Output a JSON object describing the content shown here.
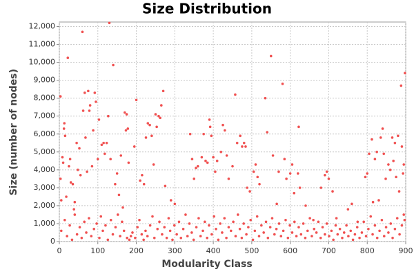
{
  "chart_data": {
    "type": "scatter",
    "title": "Size Distribution",
    "x_label": "Modularity Class",
    "y_label": "Size (number of nodes)",
    "color": "#f05050",
    "grid": true,
    "xlim": [
      0,
      900
    ],
    "ylim": [
      0,
      12250
    ],
    "xticks": [
      0,
      100,
      200,
      300,
      400,
      500,
      600,
      700,
      800,
      900
    ],
    "yticks": [
      0,
      {
        "value": 1000,
        "label": "1,000"
      },
      {
        "value": 2000,
        "label": "2,000"
      },
      {
        "value": 3000,
        "label": "3,000"
      },
      {
        "value": 4000,
        "label": "4,000"
      },
      {
        "value": 5000,
        "label": "5,000"
      },
      {
        "value": 6000,
        "label": "6,000"
      },
      {
        "value": 7000,
        "label": "7,000"
      },
      {
        "value": 8000,
        "label": "8,000"
      },
      {
        "value": 9000,
        "label": "9,000"
      },
      {
        "value": 10000,
        "label": "10,000"
      },
      {
        "value": 11000,
        "label": "11,000"
      },
      {
        "value": 12000,
        "label": "12,000"
      }
    ],
    "x": [
      3,
      3,
      5,
      8,
      10,
      12,
      13,
      15,
      18,
      22,
      25,
      28,
      30,
      35,
      38,
      40,
      45,
      48,
      52,
      55,
      60,
      62,
      66,
      68,
      72,
      75,
      78,
      80,
      85,
      88,
      92,
      95,
      100,
      103,
      110,
      115,
      118,
      123,
      127,
      130,
      133,
      140,
      145,
      150,
      155,
      160,
      165,
      170,
      173,
      175,
      178,
      180,
      195,
      200,
      210,
      215,
      220,
      225,
      230,
      235,
      240,
      245,
      250,
      253,
      258,
      262,
      265,
      270,
      275,
      290,
      300,
      340,
      345,
      350,
      355,
      360,
      370,
      375,
      380,
      385,
      390,
      392,
      395,
      400,
      405,
      410,
      420,
      425,
      430,
      435,
      440,
      450,
      457,
      462,
      470,
      475,
      480,
      484,
      488,
      495,
      505,
      510,
      515,
      520,
      535,
      540,
      550,
      555,
      565,
      570,
      580,
      585,
      590,
      600,
      605,
      610,
      620,
      622,
      625,
      640,
      660,
      680,
      690,
      695,
      700,
      710,
      720,
      750,
      760,
      775,
      795,
      800,
      805,
      812,
      815,
      820,
      825,
      830,
      835,
      840,
      843,
      848,
      855,
      860,
      865,
      868,
      872,
      875,
      880,
      883,
      888,
      890,
      893,
      895,
      898,
      897,
      5,
      14,
      20,
      27,
      33,
      40,
      46,
      53,
      58,
      65,
      70,
      77,
      83,
      90,
      97,
      104,
      108,
      113,
      120,
      126,
      134,
      139,
      146,
      152,
      158,
      163,
      168,
      176,
      182,
      186,
      190,
      197,
      203,
      208,
      214,
      219,
      224,
      229,
      236,
      242,
      247,
      255,
      260,
      267,
      273,
      279,
      284,
      288,
      294,
      299,
      305,
      311,
      316,
      322,
      328,
      333,
      338,
      344,
      349,
      356,
      362,
      367,
      373,
      378,
      384,
      389,
      396,
      402,
      407,
      413,
      418,
      423,
      429,
      434,
      440,
      446,
      452,
      458,
      464,
      469,
      474,
      479,
      486,
      491,
      497,
      503,
      508,
      514,
      519,
      525,
      531,
      537,
      542,
      548,
      553,
      559,
      564,
      571,
      576,
      582,
      588,
      594,
      599,
      605,
      611,
      616,
      622,
      628,
      634,
      639,
      645,
      651,
      656,
      662,
      668,
      673,
      679,
      684,
      690,
      695,
      701,
      707,
      712,
      718,
      723,
      729,
      735,
      740,
      746,
      751,
      757,
      763,
      768,
      774,
      780,
      786,
      791,
      797,
      803,
      809,
      814,
      820,
      826,
      832,
      838,
      844,
      849,
      855,
      861,
      866,
      872,
      878,
      884,
      890,
      895
    ],
    "values": [
      8100,
      3500,
      2300,
      4700,
      4400,
      6300,
      6600,
      5900,
      2500,
      10250,
      4200,
      4600,
      3300,
      3200,
      1800,
      2200,
      5500,
      4000,
      5200,
      3700,
      11700,
      7300,
      8300,
      5800,
      3900,
      8400,
      7300,
      7600,
      4200,
      6200,
      8300,
      7800,
      4600,
      6800,
      5400,
      5500,
      4900,
      5500,
      7000,
      12200,
      4600,
      9850,
      3200,
      3800,
      2600,
      4800,
      1900,
      7200,
      6200,
      7100,
      6300,
      4400,
      5300,
      7900,
      3400,
      3700,
      3200,
      5800,
      6600,
      6500,
      5900,
      4300,
      7100,
      6400,
      7000,
      6900,
      7600,
      8400,
      3100,
      2300,
      2100,
      6000,
      4600,
      3500,
      4100,
      4200,
      4700,
      6000,
      4500,
      4400,
      6800,
      6400,
      5900,
      4700,
      3900,
      4500,
      5000,
      6500,
      6200,
      4800,
      3500,
      4200,
      8200,
      5500,
      5900,
      5300,
      5500,
      5300,
      3000,
      2800,
      3900,
      4300,
      3600,
      3200,
      8000,
      6100,
      10350,
      4800,
      2100,
      3900,
      8800,
      4600,
      3500,
      3800,
      4300,
      2700,
      3800,
      6400,
      3000,
      2000,
      1200,
      3000,
      3700,
      3900,
      3500,
      2800,
      1300,
      1800,
      2100,
      1100,
      3600,
      3800,
      4900,
      5700,
      2200,
      4600,
      5000,
      2300,
      5800,
      6300,
      4900,
      3500,
      4300,
      4000,
      5800,
      4500,
      5500,
      3600,
      5900,
      2800,
      8700,
      5300,
      3800,
      4300,
      9400,
      1200,
      600,
      1200,
      300,
      900,
      100,
      1500,
      400,
      800,
      200,
      1100,
      500,
      1300,
      300,
      700,
      1000,
      200,
      1400,
      600,
      900,
      100,
      1200,
      400,
      800,
      1500,
      300,
      1100,
      600,
      200,
      100,
      300,
      500,
      200,
      800,
      1200,
      400,
      100,
      600,
      300,
      900,
      1400,
      200,
      700,
      1100,
      400,
      800,
      200,
      1300,
      600,
      100,
      900,
      400,
      1100,
      200,
      700,
      1500,
      300,
      1000,
      500,
      100,
      800,
      1300,
      300,
      600,
      1100,
      200,
      900,
      400,
      1400,
      700,
      100,
      1000,
      500,
      1300,
      200,
      800,
      600,
      1100,
      300,
      1500,
      700,
      200,
      1000,
      400,
      800,
      1200,
      100,
      600,
      1400,
      300,
      900,
      500,
      1100,
      200,
      800,
      1300,
      400,
      700,
      1000,
      300,
      600,
      1200,
      200,
      900,
      500,
      1100,
      300,
      800,
      400,
      1000,
      200,
      600,
      1300,
      300,
      700,
      500,
      1100,
      200,
      800,
      400,
      1000,
      300,
      600,
      100,
      900,
      400,
      700,
      200,
      500,
      900,
      300,
      600,
      100,
      400,
      800,
      200,
      500,
      1100,
      300,
      700,
      1400,
      400,
      900,
      200,
      600,
      1200,
      300,
      800,
      500,
      1000,
      200,
      700,
      1300,
      400,
      900,
      1500
    ]
  }
}
